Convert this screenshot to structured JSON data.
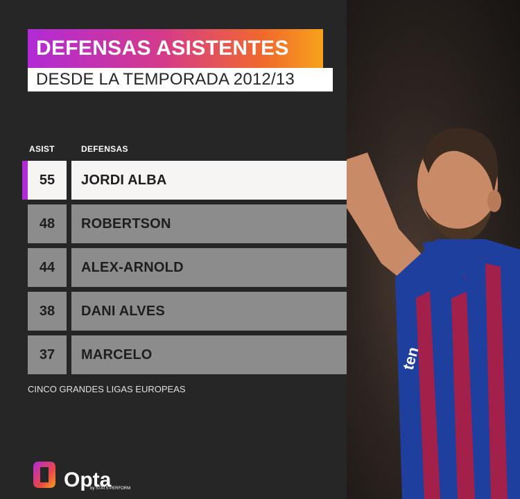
{
  "title": "DEFENSAS ASISTENTES",
  "subtitle": "DESDE LA TEMPORADA 2012/13",
  "table": {
    "col_assists": "ASIST",
    "col_defenders": "DEFENSAS",
    "rows": [
      {
        "assists": "55",
        "name": "JORDI ALBA"
      },
      {
        "assists": "48",
        "name": "ROBERTSON"
      },
      {
        "assists": "44",
        "name": "ALEX-ARNOLD"
      },
      {
        "assists": "38",
        "name": "DANI ALVES"
      },
      {
        "assists": "37",
        "name": "MARCELO"
      }
    ]
  },
  "footnote": "CINCO GRANDES LIGAS EUROPEAS",
  "logo": {
    "word": "Opta",
    "tagline": "by STATS PERFORM"
  },
  "colors": {
    "background": "#262626",
    "title_gradient_start": "#b12bd6",
    "title_gradient_end": "#f7a21b",
    "highlight_row": "#f7f5f4",
    "row": "#8c8c8c"
  }
}
